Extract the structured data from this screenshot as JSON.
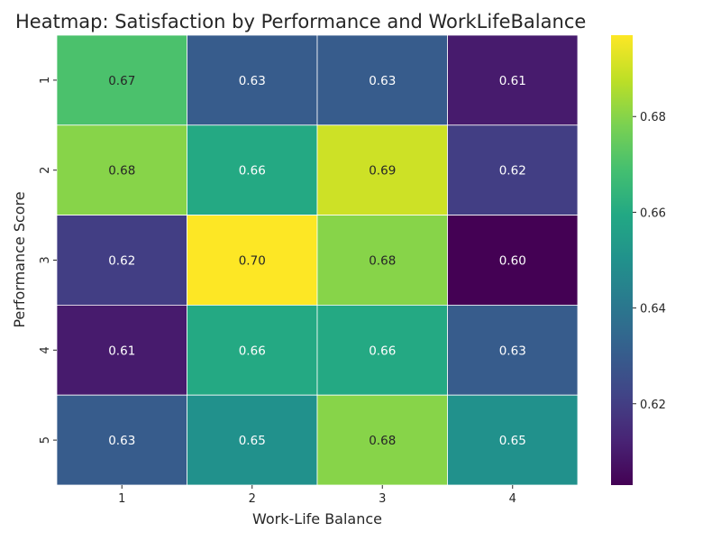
{
  "chart_data": {
    "type": "heatmap",
    "title": "Heatmap: Satisfaction by Performance and WorkLifeBalance",
    "xlabel": "Work-Life Balance",
    "ylabel": "Performance Score",
    "x_categories": [
      "1",
      "2",
      "3",
      "4"
    ],
    "y_categories": [
      "1",
      "2",
      "3",
      "4",
      "5"
    ],
    "values": [
      [
        0.67,
        0.63,
        0.63,
        0.61
      ],
      [
        0.68,
        0.66,
        0.69,
        0.62
      ],
      [
        0.62,
        0.7,
        0.68,
        0.6
      ],
      [
        0.61,
        0.66,
        0.66,
        0.63
      ],
      [
        0.63,
        0.65,
        0.68,
        0.65
      ]
    ],
    "value_labels": [
      [
        "0.67",
        "0.63",
        "0.63",
        "0.61"
      ],
      [
        "0.68",
        "0.66",
        "0.69",
        "0.62"
      ],
      [
        "0.62",
        "0.70",
        "0.68",
        "0.60"
      ],
      [
        "0.61",
        "0.66",
        "0.66",
        "0.63"
      ],
      [
        "0.63",
        "0.65",
        "0.68",
        "0.65"
      ]
    ],
    "colormap": "viridis",
    "color_range": [
      0.603,
      0.697
    ],
    "colorbar_ticks": [
      "0.62",
      "0.64",
      "0.66",
      "0.68"
    ],
    "colorbar_tick_values": [
      0.62,
      0.64,
      0.66,
      0.68
    ],
    "grid": false,
    "legend": "colorbar-right"
  }
}
